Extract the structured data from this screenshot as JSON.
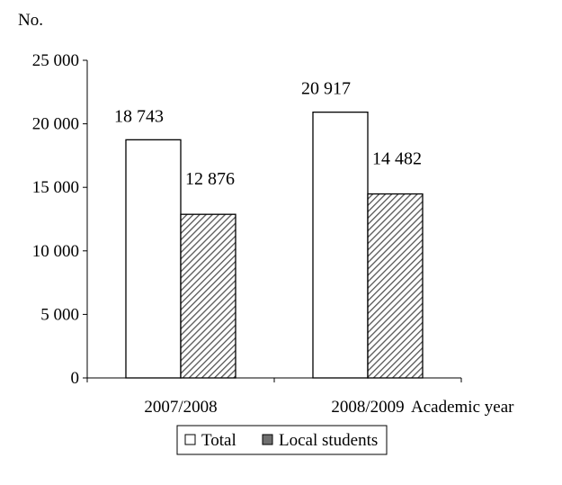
{
  "chart_data": {
    "type": "bar",
    "ylabel": "No.",
    "xlabel": "Academic year",
    "categories": [
      "2007/2008",
      "2008/2009"
    ],
    "series": [
      {
        "name": "Total",
        "values": [
          18743,
          20917
        ],
        "labels": [
          "18 743",
          "20 917"
        ],
        "fill": "#ffffff",
        "pattern": "none"
      },
      {
        "name": "Local students",
        "values": [
          12876,
          14482
        ],
        "labels": [
          "12 876",
          "14 482"
        ],
        "fill": "#7a7a7a",
        "pattern": "diagonal-hatch"
      }
    ],
    "ylim": [
      0,
      25000
    ],
    "yticks": [
      0,
      5000,
      10000,
      15000,
      20000,
      25000
    ],
    "ytick_labels": [
      "0",
      "5 000",
      "10 000",
      "15 000",
      "20 000",
      "25 000"
    ],
    "grid": false,
    "legend_position": "bottom"
  }
}
